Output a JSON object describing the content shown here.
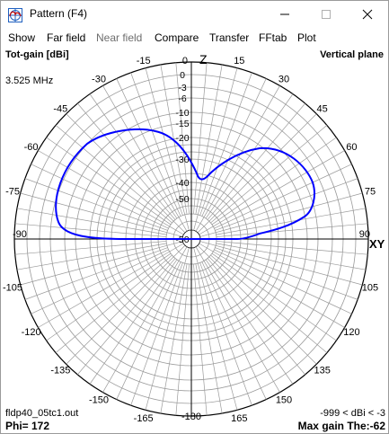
{
  "window": {
    "title": "Pattern   (F4)"
  },
  "menu": [
    "Show",
    "Far field",
    "Near field",
    "Compare",
    "Transfer",
    "FFtab",
    "Plot"
  ],
  "menu_disabled": [
    false,
    false,
    true,
    false,
    false,
    false,
    false
  ],
  "plot": {
    "left_header": "Tot-gain [dBi]",
    "right_header": "Vertical plane",
    "frequency": "3.525 MHz",
    "filename": "fldp40_05tc1.out",
    "range": "-999 < dBi < -3",
    "phi": "Phi= 172",
    "max_gain": "Max gain The:-62",
    "zenith_label": "Z",
    "horizon_label": "XY",
    "angle_labels": [
      "0",
      "15",
      "-15",
      "30",
      "-30",
      "45",
      "-45",
      "60",
      "-60",
      "75",
      "-75",
      "90",
      "-90",
      "105",
      "-105",
      "120",
      "-120",
      "135",
      "-135",
      "150",
      "-150",
      "165",
      "-165",
      "-180"
    ],
    "gain_ring_labels": [
      "0",
      "-3",
      "-6",
      "-10",
      "-15",
      "-20",
      "-30",
      "-40",
      "-50"
    ],
    "pattern_color": "#0000ff",
    "info_text_color": "#0000aa"
  }
}
